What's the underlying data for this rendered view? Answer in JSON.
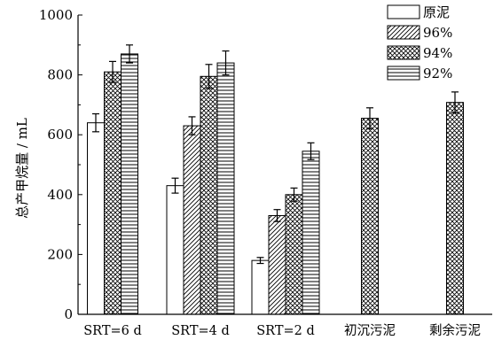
{
  "chart_data": {
    "type": "bar",
    "ylabel": "总产甲烷量 / mL",
    "xlabel": "",
    "ylim": [
      0,
      1000
    ],
    "yticks": [
      0,
      200,
      400,
      600,
      800,
      1000
    ],
    "categories": [
      "SRT=6 d",
      "SRT=4 d",
      "SRT=2 d",
      "初沉污泥",
      "剩余污泥"
    ],
    "legend_position": "top-right",
    "series": [
      {
        "name": "原泥",
        "pattern": "none",
        "values": [
          640,
          430,
          180,
          null,
          null
        ],
        "errors": [
          30,
          25,
          10,
          null,
          null
        ]
      },
      {
        "name": "96%",
        "pattern": "diagonal",
        "values": [
          null,
          630,
          330,
          null,
          null
        ],
        "errors": [
          null,
          30,
          20,
          null,
          null
        ]
      },
      {
        "name": "94%",
        "pattern": "crosshatch",
        "values": [
          810,
          795,
          400,
          655,
          708
        ],
        "errors": [
          35,
          40,
          22,
          35,
          35
        ]
      },
      {
        "name": "92%",
        "pattern": "horizontal",
        "values": [
          870,
          840,
          545,
          null,
          null
        ],
        "errors": [
          30,
          40,
          28,
          null,
          null
        ]
      }
    ]
  }
}
